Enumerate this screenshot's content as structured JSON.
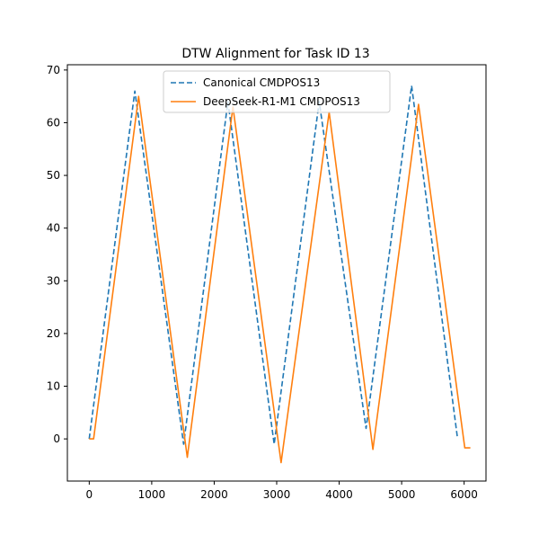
{
  "chart_data": {
    "type": "line",
    "title": "DTW Alignment for Task ID 13",
    "xlabel": "",
    "ylabel": "",
    "xlim": [
      -350,
      6350
    ],
    "ylim": [
      -8,
      71
    ],
    "xticks": [
      0,
      1000,
      2000,
      3000,
      4000,
      5000,
      6000
    ],
    "yticks": [
      0,
      10,
      20,
      30,
      40,
      50,
      60,
      70
    ],
    "grid": false,
    "legend_position": "top-center",
    "series": [
      {
        "name": "Canonical CMDPOS13",
        "color": "#1f77b4",
        "style": "dashed",
        "points": [
          [
            0,
            0
          ],
          [
            730,
            66
          ],
          [
            1510,
            -1
          ],
          [
            2220,
            64
          ],
          [
            2960,
            -1
          ],
          [
            3680,
            64
          ],
          [
            4430,
            2
          ],
          [
            5160,
            67
          ],
          [
            5890,
            0.5
          ]
        ]
      },
      {
        "name": "DeepSeek-R1-M1 CMDPOS13",
        "color": "#ff7f0e",
        "style": "solid",
        "points": [
          [
            0,
            0
          ],
          [
            70,
            0
          ],
          [
            790,
            65
          ],
          [
            1570,
            -3.5
          ],
          [
            2300,
            63
          ],
          [
            3070,
            -4.5
          ],
          [
            3840,
            62
          ],
          [
            4540,
            -2
          ],
          [
            5270,
            63.5
          ],
          [
            6010,
            -1.7
          ],
          [
            6100,
            -1.7
          ]
        ]
      }
    ]
  }
}
